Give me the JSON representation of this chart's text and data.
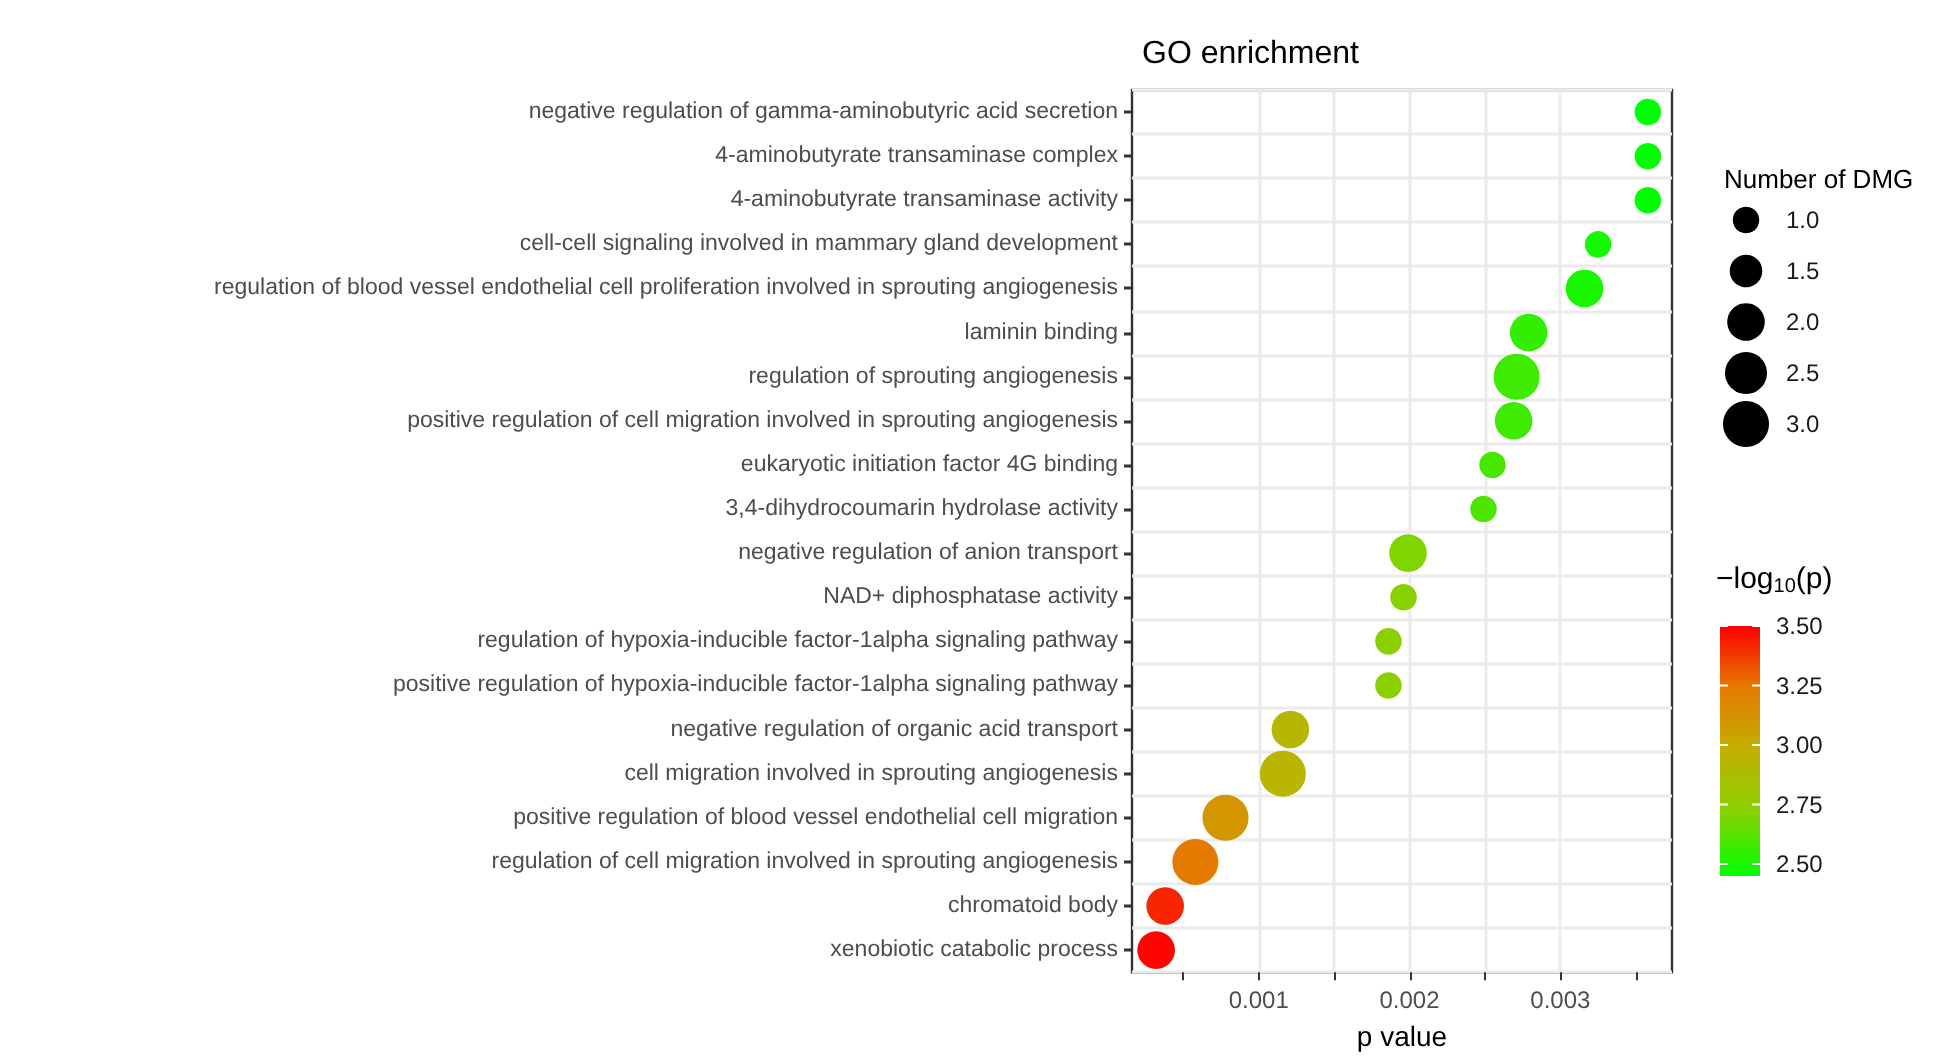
{
  "chart_data": {
    "type": "bubble",
    "title": "GO enrichment",
    "xlabel": "p value",
    "legend_title": "Number of DMG",
    "clabel": "−log$_{10}$(p)",
    "categories": [
      "negative regulation of gamma-aminobutyric acid secretion",
      "4-aminobutyrate transaminase complex",
      "4-aminobutyrate transaminase activity",
      "cell-cell signaling involved in mammary gland development",
      "regulation of blood vessel endothelial cell proliferation involved in sprouting angiogenesis",
      "laminin binding",
      "regulation of sprouting angiogenesis",
      "positive regulation of cell migration involved in sprouting angiogenesis",
      "eukaryotic initiation factor 4G binding",
      "3,4-dihydrocoumarin hydrolase activity",
      "negative regulation of anion transport",
      "NAD+ diphosphatase activity",
      "regulation of hypoxia-inducible factor-1alpha signaling pathway",
      "positive regulation of hypoxia-inducible factor-1alpha signaling pathway",
      "negative regulation of organic acid transport",
      "cell migration involved in sprouting angiogenesis",
      "positive regulation of blood vessel endothelial cell migration",
      "regulation of cell migration involved in sprouting angiogenesis",
      "chromatoid body",
      "xenobiotic catabolic process"
    ],
    "orientation": "horizontal",
    "values": [
      0.00358,
      0.00358,
      0.00358,
      0.00325,
      0.00316,
      0.00279,
      0.00271,
      0.00269,
      0.00255,
      0.00249,
      0.00199,
      0.00196,
      0.00186,
      0.00186,
      0.00121,
      0.00116,
      0.00078,
      0.00058,
      0.00038,
      0.00032
    ],
    "sizes": [
      1,
      1,
      1,
      1,
      2,
      2,
      3,
      2,
      1,
      1,
      2,
      1,
      1,
      1,
      2,
      3,
      3,
      3,
      2,
      2
    ],
    "cvalues": [
      2.45,
      2.45,
      2.45,
      2.49,
      2.5,
      2.55,
      2.57,
      2.57,
      2.59,
      2.6,
      2.7,
      2.71,
      2.73,
      2.73,
      2.92,
      2.94,
      3.11,
      3.24,
      3.42,
      3.49
    ],
    "size_legend": [
      {
        "value": 1,
        "label": "1.0"
      },
      {
        "value": 1.5,
        "label": "1.5"
      },
      {
        "value": 2,
        "label": "2.0"
      },
      {
        "value": 2.5,
        "label": "2.5"
      },
      {
        "value": 3,
        "label": "3.0"
      }
    ],
    "xlim": [
      0.00016,
      0.00374
    ],
    "xticks": [
      {
        "value": 0.0005,
        "label": null
      },
      {
        "value": 0.001,
        "label": "0.001"
      },
      {
        "value": 0.0015,
        "label": null
      },
      {
        "value": 0.002,
        "label": "0.002"
      },
      {
        "value": 0.0025,
        "label": null
      },
      {
        "value": 0.003,
        "label": "0.003"
      },
      {
        "value": 0.0035,
        "label": null
      }
    ],
    "clim": [
      2.45,
      3.5
    ],
    "cticks": [
      {
        "value": 2.5,
        "label": "2.50"
      },
      {
        "value": 2.75,
        "label": "2.75"
      },
      {
        "value": 3.0,
        "label": "3.00"
      },
      {
        "value": 3.25,
        "label": "3.25"
      },
      {
        "value": 3.5,
        "label": "3.50"
      }
    ],
    "grid": true
  }
}
